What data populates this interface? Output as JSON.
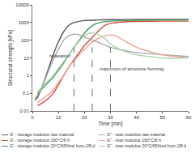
{
  "chart_data": {
    "type": "line",
    "x_label": "Time [min]",
    "y_label": "Structural strength [kPa]",
    "log": "y",
    "grid": false,
    "legend": "bottom",
    "xlim": [
      0,
      60
    ],
    "xticks": [
      0,
      10,
      20,
      30,
      40,
      50,
      60
    ],
    "ylim": [
      0.01,
      10000
    ],
    "yticks": [
      0.01,
      0.1,
      1,
      10,
      100,
      1000,
      10000
    ],
    "annotations": [
      "relaxation",
      "maximum of structure forming"
    ],
    "vlines": [
      16,
      23,
      30
    ],
    "series": [
      {
        "name": "G' - storage modulus raw material",
        "color": "#555555",
        "line_style": "solid",
        "x": [
          1,
          2,
          4,
          6,
          8,
          10,
          12,
          14,
          16,
          20,
          25,
          30,
          40,
          50,
          60
        ],
        "values": [
          0.04,
          0.06,
          0.3,
          2,
          15,
          80,
          300,
          700,
          1000,
          1300,
          1400,
          1450,
          1500,
          1500,
          1500
        ]
      },
      {
        "name": "G' - storage modulus 160°C/6 h",
        "color": "#c8503f",
        "line_style": "solid",
        "x": [
          2,
          4,
          6,
          8,
          10,
          12,
          14,
          16,
          18,
          20,
          22,
          25,
          28,
          30,
          35,
          40,
          50,
          60
        ],
        "values": [
          0.02,
          0.03,
          0.05,
          0.1,
          0.3,
          1,
          3,
          8,
          20,
          50,
          100,
          300,
          700,
          900,
          1100,
          1150,
          1200,
          1200
        ]
      },
      {
        "name": "G' - storage modulus 20°C/65%rel.hum./28 d",
        "color": "#4a9a5a",
        "line_style": "solid",
        "x": [
          2,
          4,
          6,
          8,
          10,
          12,
          14,
          16,
          18,
          20,
          22,
          24,
          26,
          30,
          35,
          40,
          50,
          60
        ],
        "values": [
          0.1,
          0.2,
          0.4,
          0.8,
          2,
          5,
          15,
          40,
          100,
          250,
          500,
          800,
          1000,
          1200,
          1300,
          1350,
          1400,
          1400
        ]
      },
      {
        "name": "G'' - loss modulus raw material",
        "color": "#a8a8a8",
        "line_style": "solid",
        "x": [
          1,
          2,
          4,
          6,
          8,
          10,
          12,
          14,
          16,
          18,
          20,
          25,
          30,
          40,
          50,
          60
        ],
        "values": [
          0.05,
          0.08,
          0.3,
          1.5,
          8,
          30,
          100,
          180,
          220,
          200,
          150,
          80,
          40,
          20,
          15,
          12
        ]
      },
      {
        "name": "G'' - loss modulus 160°C/6 h",
        "color": "#eda08e",
        "line_style": "solid",
        "x": [
          2,
          4,
          6,
          8,
          10,
          12,
          14,
          16,
          18,
          20,
          22,
          25,
          28,
          30,
          32,
          35,
          40,
          50,
          60
        ],
        "values": [
          0.03,
          0.05,
          0.08,
          0.15,
          0.4,
          1,
          3,
          7,
          15,
          30,
          60,
          120,
          180,
          200,
          180,
          100,
          40,
          15,
          10
        ]
      },
      {
        "name": "G'' - loss modulus 20°C/65%rel.hum./28 d",
        "color": "#a6d3a4",
        "line_style": "solid",
        "x": [
          2,
          4,
          6,
          8,
          10,
          12,
          14,
          16,
          18,
          20,
          22,
          23,
          25,
          28,
          30,
          35,
          40,
          50,
          60
        ],
        "values": [
          0.12,
          0.25,
          0.5,
          1,
          2.5,
          6,
          15,
          40,
          90,
          180,
          250,
          260,
          220,
          120,
          60,
          25,
          15,
          10,
          10
        ]
      }
    ]
  }
}
